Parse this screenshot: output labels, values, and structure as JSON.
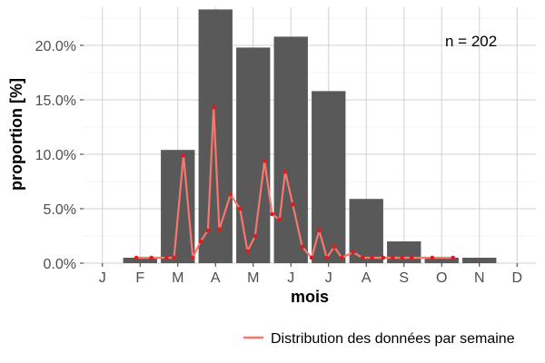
{
  "chart_data": {
    "type": "bar",
    "xlabel": "mois",
    "ylabel": "proportion [%]",
    "annotation": "n = 202",
    "categories": [
      "J",
      "F",
      "M",
      "A",
      "M",
      "J",
      "J",
      "A",
      "S",
      "O",
      "N",
      "D"
    ],
    "bar_values": [
      0.0,
      0.5,
      10.4,
      23.3,
      19.8,
      20.8,
      15.8,
      5.9,
      2.0,
      0.5,
      0.5,
      0.0
    ],
    "ylim": [
      0,
      23.5
    ],
    "xlim": [
      0.5,
      12.5
    ],
    "yticks": [
      0,
      5,
      10,
      15,
      20
    ],
    "ytick_labels": [
      "0.0%",
      "5.0%",
      "10.0%",
      "15.0%",
      "20.0%"
    ],
    "grid": true,
    "legend_position": "bottom",
    "colors": {
      "bars": "#595959",
      "line": "#f8766d",
      "points": "#e31a1c",
      "grid": "#d0d0d0"
    },
    "series": [
      {
        "name": "Distribution des données par semaine",
        "type": "line",
        "x": [
          1.9,
          2.3,
          2.7,
          2.9,
          3.15,
          3.4,
          3.6,
          3.8,
          3.95,
          4.1,
          4.4,
          4.65,
          4.85,
          5.05,
          5.3,
          5.5,
          5.7,
          5.85,
          6.05,
          6.3,
          6.55,
          6.75,
          6.95,
          7.15,
          7.35,
          7.65,
          7.9,
          8.15,
          8.45,
          8.7,
          8.95,
          9.2,
          9.75,
          10.3
        ],
        "y": [
          0.5,
          0.5,
          0.5,
          0.5,
          9.9,
          0.5,
          2.0,
          3.0,
          14.3,
          3.1,
          6.3,
          5.0,
          1.1,
          2.5,
          9.4,
          4.5,
          4.0,
          8.4,
          5.4,
          1.5,
          0.5,
          3.0,
          0.5,
          1.5,
          0.5,
          1.0,
          0.5,
          0.5,
          0.5,
          0.5,
          0.5,
          0.5,
          0.5,
          0.5
        ]
      }
    ]
  }
}
